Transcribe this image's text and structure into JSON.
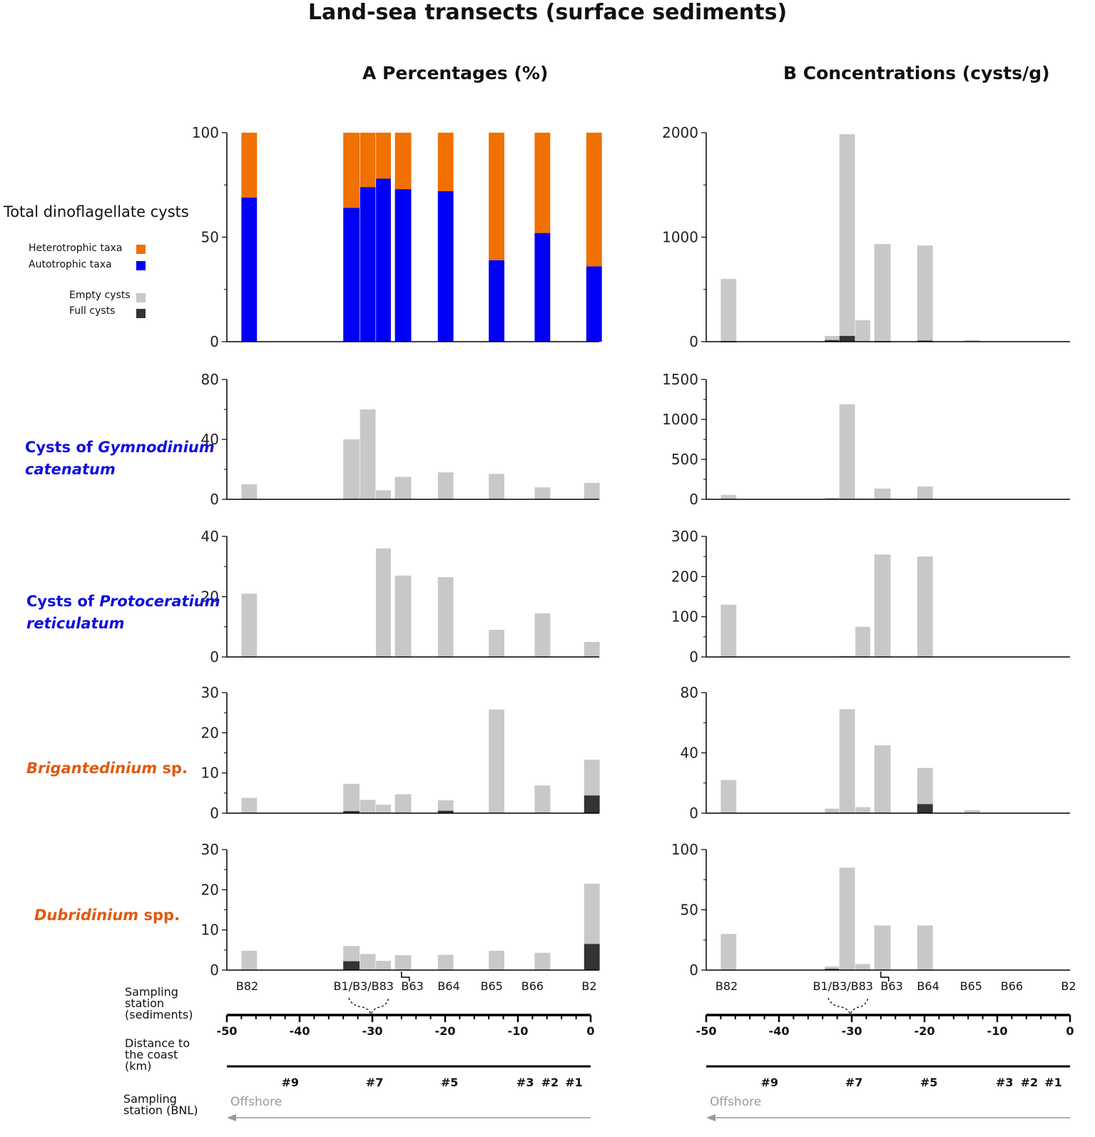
{
  "title": "Land-sea transects (surface sediments)",
  "panel_a_title": "A  Percentages (%)",
  "panel_b_title": "B  Concentrations (cysts/g)",
  "row_labels": {
    "total": "Total dinoflagellate cysts",
    "gym_prefix": "Cysts of ",
    "gym_genus": "Gymnodinium",
    "gym_species": "catenatum",
    "proto_prefix": "Cysts of ",
    "proto_genus": "Protoceratium",
    "proto_species": "reticulatum",
    "brig_genus": "Brigantedinium",
    "brig_suffix": " sp.",
    "dub_genus": "Dubridinium",
    "dub_suffix": " spp."
  },
  "legend": {
    "heterotrophic": "Heterotrophic taxa",
    "autotrophic": "Autotrophic taxa",
    "empty": "Empty cysts",
    "full": "Full cysts"
  },
  "colors": {
    "heterotrophic": "#f07000",
    "autotrophic": "#0000f5",
    "empty": "#c8c8c8",
    "full": "#333333",
    "axis": "#000000",
    "arrow": "#999999",
    "row_blue": "#1010e0",
    "row_orange": "#e05a10"
  },
  "axis_labels": {
    "sampling_station_sediments": [
      "Sampling",
      "station",
      "(sediments)"
    ],
    "distance": [
      "Distance to",
      "the coast",
      "(km)"
    ],
    "sampling_station_bnl": [
      "Sampling",
      "station (BNL)"
    ],
    "offshore": "Offshore"
  },
  "chart_data": {
    "type": "bar",
    "x_unit": "Distance to the coast (km)",
    "xlim": [
      -50,
      0
    ],
    "x_ticks": [
      -50,
      -40,
      -30,
      -20,
      -10,
      0
    ],
    "station_labels": [
      {
        "label": "B82",
        "x": -47.2
      },
      {
        "label": "B1/B3/B83",
        "x": -31.2
      },
      {
        "label": "B63",
        "x": -24.5
      },
      {
        "label": "B64",
        "x": -19.5
      },
      {
        "label": "B65",
        "x": -13.6
      },
      {
        "label": "B66",
        "x": -8.0
      },
      {
        "label": "B2",
        "x": -0.2
      }
    ],
    "bnl_stations": [
      {
        "label": "#9",
        "x": -41.3
      },
      {
        "label": "#7",
        "x": -29.7
      },
      {
        "label": "#5",
        "x": -19.4
      },
      {
        "label": "#3",
        "x": -9.0
      },
      {
        "label": "#2",
        "x": -5.6
      },
      {
        "label": "#1",
        "x": -2.3
      }
    ],
    "panel_a": [
      {
        "name": "Total dinoflagellate cysts",
        "type": "stacked",
        "ylim": [
          0,
          100
        ],
        "yticks": [
          0,
          50,
          100
        ],
        "minor": [
          25,
          75
        ],
        "bars": [
          {
            "x0": -48.0,
            "x1": -45.8,
            "auto": 69,
            "het": 31
          },
          {
            "x0": -34.0,
            "x1": -31.7,
            "auto": 64,
            "het": 36
          },
          {
            "x0": -31.7,
            "x1": -29.5,
            "auto": 74,
            "het": 26
          },
          {
            "x0": -29.5,
            "x1": -27.4,
            "auto": 78,
            "het": 22
          },
          {
            "x0": -26.9,
            "x1": -24.6,
            "auto": 73,
            "het": 27
          },
          {
            "x0": -21.0,
            "x1": -18.8,
            "auto": 72,
            "het": 28
          },
          {
            "x0": -14.0,
            "x1": -11.8,
            "auto": 39,
            "het": 61
          },
          {
            "x0": -7.7,
            "x1": -5.5,
            "auto": 52,
            "het": 48
          },
          {
            "x0": -0.6,
            "x1": 1.6,
            "auto": 36,
            "het": 64
          }
        ]
      },
      {
        "name": "Cysts of Gymnodinium catenatum",
        "type": "empty_full",
        "ylim": [
          0,
          80
        ],
        "yticks": [
          0,
          40,
          80
        ],
        "minor": [
          20,
          60
        ],
        "bars": [
          {
            "x0": -48.0,
            "x1": -45.8,
            "empty": 10,
            "full": 0
          },
          {
            "x0": -34.0,
            "x1": -31.7,
            "empty": 40,
            "full": 0
          },
          {
            "x0": -31.7,
            "x1": -29.5,
            "empty": 60,
            "full": 0
          },
          {
            "x0": -29.5,
            "x1": -27.4,
            "empty": 6,
            "full": 0
          },
          {
            "x0": -26.9,
            "x1": -24.6,
            "empty": 15,
            "full": 0
          },
          {
            "x0": -21.0,
            "x1": -18.8,
            "empty": 18,
            "full": 0
          },
          {
            "x0": -14.0,
            "x1": -11.8,
            "empty": 17,
            "full": 0
          },
          {
            "x0": -7.7,
            "x1": -5.5,
            "empty": 8,
            "full": 0
          },
          {
            "x0": -0.9,
            "x1": 1.3,
            "empty": 11,
            "full": 0
          }
        ]
      },
      {
        "name": "Cysts of Protoceratium reticulatum",
        "type": "empty_full",
        "ylim": [
          0,
          40
        ],
        "yticks": [
          0,
          20,
          40
        ],
        "minor": [
          10,
          30
        ],
        "bars": [
          {
            "x0": -48.0,
            "x1": -45.8,
            "empty": 21,
            "full": 0
          },
          {
            "x0": -31.7,
            "x1": -29.5,
            "empty": 0.3,
            "full": 0
          },
          {
            "x0": -29.5,
            "x1": -27.4,
            "empty": 36,
            "full": 0
          },
          {
            "x0": -26.9,
            "x1": -24.6,
            "empty": 27,
            "full": 0
          },
          {
            "x0": -21.0,
            "x1": -18.8,
            "empty": 26.5,
            "full": 0
          },
          {
            "x0": -14.0,
            "x1": -11.8,
            "empty": 9,
            "full": 0
          },
          {
            "x0": -7.7,
            "x1": -5.5,
            "empty": 14.5,
            "full": 0
          },
          {
            "x0": -0.9,
            "x1": 1.3,
            "empty": 5,
            "full": 0
          }
        ]
      },
      {
        "name": "Brigantedinium sp.",
        "type": "empty_full",
        "ylim": [
          0,
          30
        ],
        "yticks": [
          0,
          10,
          20,
          30
        ],
        "minor": [
          5,
          15,
          25
        ],
        "bars": [
          {
            "x0": -48.0,
            "x1": -45.8,
            "empty": 3.8,
            "full": 0
          },
          {
            "x0": -34.0,
            "x1": -31.7,
            "empty": 7.3,
            "full": 0.5
          },
          {
            "x0": -31.7,
            "x1": -29.5,
            "empty": 3.3,
            "full": 0
          },
          {
            "x0": -29.5,
            "x1": -27.4,
            "empty": 2.1,
            "full": 0
          },
          {
            "x0": -26.9,
            "x1": -24.6,
            "empty": 4.7,
            "full": 0
          },
          {
            "x0": -21.0,
            "x1": -18.8,
            "empty": 3.2,
            "full": 0.6
          },
          {
            "x0": -14.0,
            "x1": -11.8,
            "empty": 25.8,
            "full": 0
          },
          {
            "x0": -7.7,
            "x1": -5.5,
            "empty": 6.9,
            "full": 0
          },
          {
            "x0": -0.9,
            "x1": 1.3,
            "empty": 13.3,
            "full": 4.4
          }
        ]
      },
      {
        "name": "Dubridinium spp.",
        "type": "empty_full",
        "ylim": [
          0,
          30
        ],
        "yticks": [
          0,
          10,
          20,
          30
        ],
        "minor": [
          5,
          15,
          25
        ],
        "bars": [
          {
            "x0": -48.0,
            "x1": -45.8,
            "empty": 4.8,
            "full": 0
          },
          {
            "x0": -34.0,
            "x1": -31.7,
            "empty": 6.0,
            "full": 2.2
          },
          {
            "x0": -31.7,
            "x1": -29.5,
            "empty": 4.0,
            "full": 0
          },
          {
            "x0": -29.5,
            "x1": -27.4,
            "empty": 2.3,
            "full": 0
          },
          {
            "x0": -26.9,
            "x1": -24.6,
            "empty": 3.7,
            "full": 0
          },
          {
            "x0": -21.0,
            "x1": -18.8,
            "empty": 3.8,
            "full": 0
          },
          {
            "x0": -14.0,
            "x1": -11.8,
            "empty": 4.8,
            "full": 0
          },
          {
            "x0": -7.7,
            "x1": -5.5,
            "empty": 4.3,
            "full": 0
          },
          {
            "x0": -0.9,
            "x1": 1.3,
            "empty": 21.5,
            "full": 6.5
          }
        ]
      }
    ],
    "panel_b": [
      {
        "name": "Total dinoflagellate cysts",
        "type": "empty_full",
        "ylim": [
          0,
          2000
        ],
        "yticks": [
          0,
          1000,
          2000
        ],
        "minor": [
          500,
          1500
        ],
        "bars": [
          {
            "x0": -48.0,
            "x1": -45.8,
            "empty": 600,
            "full": 5
          },
          {
            "x0": -33.7,
            "x1": -31.7,
            "empty": 55,
            "full": 15
          },
          {
            "x0": -31.7,
            "x1": -29.5,
            "empty": 1985,
            "full": 55
          },
          {
            "x0": -29.5,
            "x1": -27.4,
            "empty": 205,
            "full": 0
          },
          {
            "x0": -26.9,
            "x1": -24.6,
            "empty": 935,
            "full": 5
          },
          {
            "x0": -21.0,
            "x1": -18.8,
            "empty": 920,
            "full": 10
          },
          {
            "x0": -14.5,
            "x1": -12.3,
            "empty": 15,
            "full": 0
          }
        ]
      },
      {
        "name": "Cysts of Gymnodinium catenatum",
        "type": "empty_full",
        "ylim": [
          0,
          1500
        ],
        "yticks": [
          0,
          500,
          1000,
          1500
        ],
        "minor": [
          250,
          750,
          1250
        ],
        "bars": [
          {
            "x0": -48.0,
            "x1": -45.8,
            "empty": 55,
            "full": 0
          },
          {
            "x0": -33.7,
            "x1": -31.7,
            "empty": 20,
            "full": 0
          },
          {
            "x0": -31.7,
            "x1": -29.5,
            "empty": 1190,
            "full": 0
          },
          {
            "x0": -29.5,
            "x1": -27.4,
            "empty": 10,
            "full": 0
          },
          {
            "x0": -26.9,
            "x1": -24.6,
            "empty": 135,
            "full": 0
          },
          {
            "x0": -21.0,
            "x1": -18.8,
            "empty": 160,
            "full": 0
          }
        ]
      },
      {
        "name": "Cysts of Protoceratium reticulatum",
        "type": "empty_full",
        "ylim": [
          0,
          300
        ],
        "yticks": [
          0,
          100,
          200,
          300
        ],
        "minor": [
          50,
          150,
          250
        ],
        "bars": [
          {
            "x0": -48.0,
            "x1": -45.8,
            "empty": 130,
            "full": 0
          },
          {
            "x0": -31.7,
            "x1": -29.5,
            "empty": 3,
            "full": 0
          },
          {
            "x0": -29.5,
            "x1": -27.4,
            "empty": 75,
            "full": 0
          },
          {
            "x0": -26.9,
            "x1": -24.6,
            "empty": 255,
            "full": 0
          },
          {
            "x0": -21.0,
            "x1": -18.8,
            "empty": 250,
            "full": 0
          }
        ]
      },
      {
        "name": "Brigantedinium sp.",
        "type": "empty_full",
        "ylim": [
          0,
          80
        ],
        "yticks": [
          0,
          40,
          80
        ],
        "minor": [
          20,
          60
        ],
        "bars": [
          {
            "x0": -48.0,
            "x1": -45.8,
            "empty": 22,
            "full": 0
          },
          {
            "x0": -33.7,
            "x1": -31.7,
            "empty": 3,
            "full": 0
          },
          {
            "x0": -31.7,
            "x1": -29.5,
            "empty": 69,
            "full": 0
          },
          {
            "x0": -29.5,
            "x1": -27.4,
            "empty": 4,
            "full": 0
          },
          {
            "x0": -26.9,
            "x1": -24.6,
            "empty": 45,
            "full": 0
          },
          {
            "x0": -21.0,
            "x1": -18.8,
            "empty": 30,
            "full": 6
          },
          {
            "x0": -14.5,
            "x1": -12.3,
            "empty": 2,
            "full": 0
          }
        ]
      },
      {
        "name": "Dubridinium spp.",
        "type": "empty_full",
        "ylim": [
          0,
          100
        ],
        "yticks": [
          0,
          50,
          100
        ],
        "minor": [
          25,
          75
        ],
        "bars": [
          {
            "x0": -48.0,
            "x1": -45.8,
            "empty": 30,
            "full": 0
          },
          {
            "x0": -33.7,
            "x1": -31.7,
            "empty": 3,
            "full": 1
          },
          {
            "x0": -31.7,
            "x1": -29.5,
            "empty": 85,
            "full": 0
          },
          {
            "x0": -29.5,
            "x1": -27.4,
            "empty": 5,
            "full": 0
          },
          {
            "x0": -26.9,
            "x1": -24.6,
            "empty": 37,
            "full": 0
          },
          {
            "x0": -21.0,
            "x1": -18.8,
            "empty": 37,
            "full": 0
          }
        ]
      }
    ]
  }
}
